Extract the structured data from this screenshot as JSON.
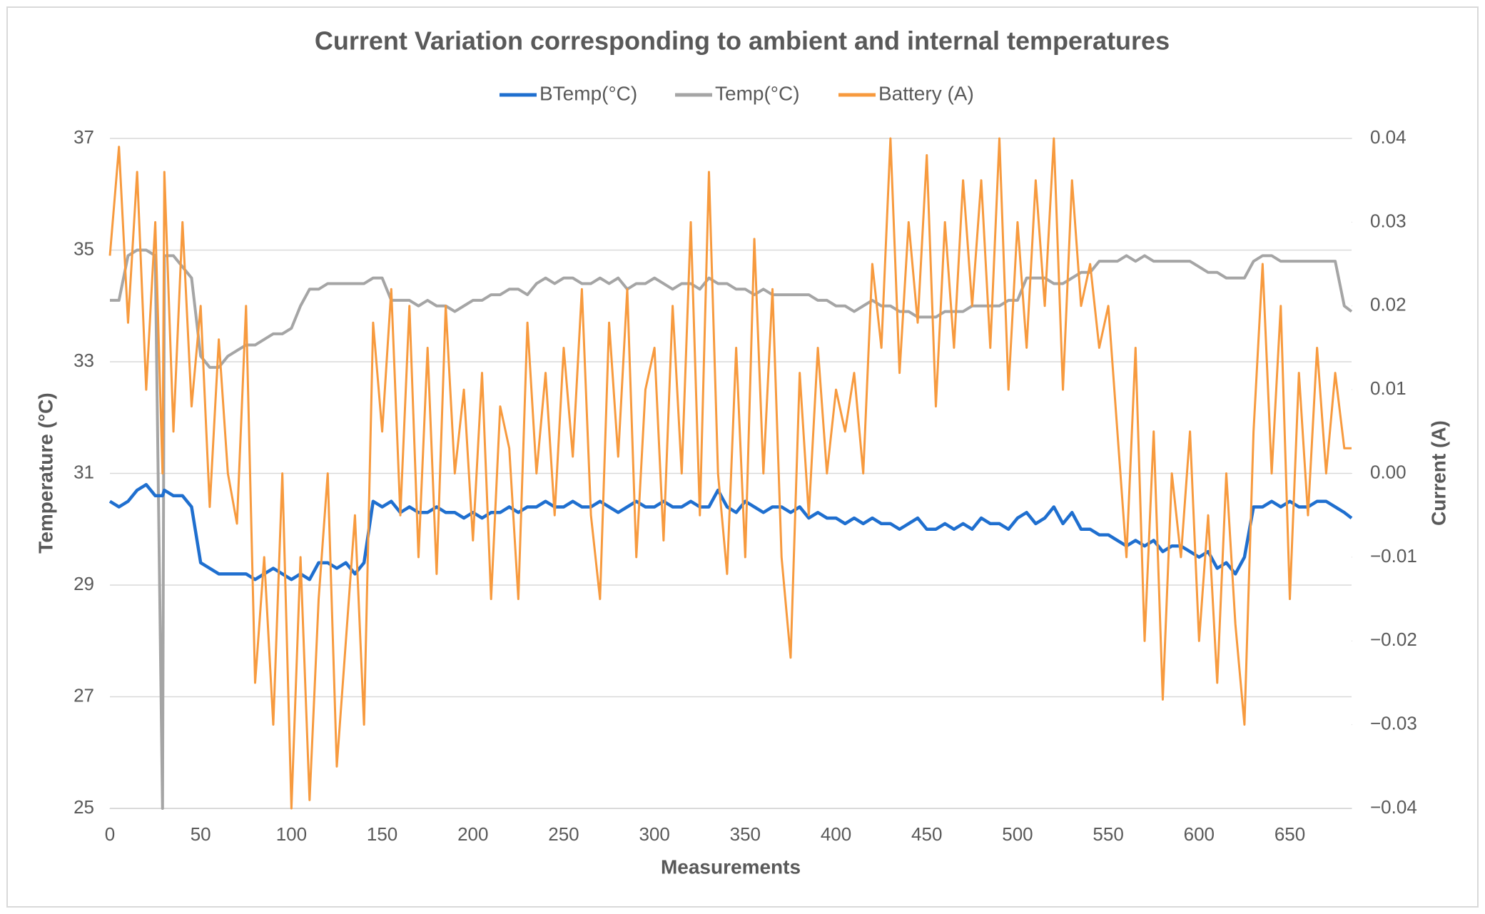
{
  "chart_data": {
    "type": "line",
    "title": "Current Variation corresponding to ambient and internal temperatures",
    "x_label": "Measurements",
    "y_label": "Temperature (°C)",
    "y2_label": "Current (A)",
    "legend": "top",
    "grid": true,
    "xlim": [
      0,
      684
    ],
    "xticks": [
      0,
      50,
      100,
      150,
      200,
      250,
      300,
      350,
      400,
      450,
      500,
      550,
      600,
      650
    ],
    "ylim": [
      25,
      37
    ],
    "yticks": [
      25,
      27,
      29,
      31,
      33,
      35,
      37
    ],
    "y2lim": [
      -0.04,
      0.04
    ],
    "y2ticks": [
      {
        "value": -0.04,
        "label": "−0.04"
      },
      {
        "value": -0.03,
        "label": "−0.03"
      },
      {
        "value": -0.02,
        "label": "−0.02"
      },
      {
        "value": -0.01,
        "label": "−0.01"
      },
      {
        "value": 0,
        "label": "0.00"
      },
      0.01,
      0.02,
      0.03,
      0.04
    ],
    "x": [
      0,
      5,
      10,
      15,
      20,
      25,
      29,
      30,
      35,
      40,
      45,
      50,
      55,
      60,
      65,
      70,
      75,
      80,
      85,
      90,
      95,
      100,
      105,
      110,
      115,
      120,
      125,
      130,
      135,
      140,
      145,
      150,
      155,
      160,
      165,
      170,
      175,
      180,
      185,
      190,
      195,
      200,
      205,
      210,
      215,
      220,
      225,
      230,
      235,
      240,
      245,
      250,
      255,
      260,
      265,
      270,
      275,
      280,
      285,
      290,
      295,
      300,
      305,
      310,
      315,
      320,
      325,
      330,
      335,
      340,
      345,
      350,
      355,
      360,
      365,
      370,
      375,
      380,
      385,
      390,
      395,
      400,
      405,
      410,
      415,
      420,
      425,
      430,
      435,
      440,
      445,
      450,
      455,
      460,
      465,
      470,
      475,
      480,
      485,
      490,
      495,
      500,
      505,
      510,
      515,
      520,
      525,
      530,
      535,
      540,
      545,
      550,
      555,
      560,
      565,
      570,
      575,
      580,
      585,
      590,
      595,
      600,
      605,
      610,
      615,
      620,
      625,
      630,
      635,
      640,
      645,
      650,
      655,
      660,
      665,
      670,
      675,
      680,
      684
    ],
    "series": [
      {
        "name": "BTemp(°C)",
        "color": "#1f6fcf",
        "values": [
          30.5,
          30.4,
          30.5,
          30.7,
          30.8,
          30.6,
          30.6,
          30.7,
          30.6,
          30.6,
          30.4,
          29.4,
          29.3,
          29.2,
          29.2,
          29.2,
          29.2,
          29.1,
          29.2,
          29.3,
          29.2,
          29.1,
          29.2,
          29.1,
          29.4,
          29.4,
          29.3,
          29.4,
          29.2,
          29.4,
          30.5,
          30.4,
          30.5,
          30.3,
          30.4,
          30.3,
          30.3,
          30.4,
          30.3,
          30.3,
          30.2,
          30.3,
          30.2,
          30.3,
          30.3,
          30.4,
          30.3,
          30.4,
          30.4,
          30.5,
          30.4,
          30.4,
          30.5,
          30.4,
          30.4,
          30.5,
          30.4,
          30.3,
          30.4,
          30.5,
          30.4,
          30.4,
          30.5,
          30.4,
          30.4,
          30.5,
          30.4,
          30.4,
          30.7,
          30.4,
          30.3,
          30.5,
          30.4,
          30.3,
          30.4,
          30.4,
          30.3,
          30.4,
          30.2,
          30.3,
          30.2,
          30.2,
          30.1,
          30.2,
          30.1,
          30.2,
          30.1,
          30.1,
          30.0,
          30.1,
          30.2,
          30.0,
          30.0,
          30.1,
          30.0,
          30.1,
          30.0,
          30.2,
          30.1,
          30.1,
          30.0,
          30.2,
          30.3,
          30.1,
          30.2,
          30.4,
          30.1,
          30.3,
          30.0,
          30.0,
          29.9,
          29.9,
          29.8,
          29.7,
          29.8,
          29.7,
          29.8,
          29.6,
          29.7,
          29.7,
          29.6,
          29.5,
          29.6,
          29.3,
          29.4,
          29.2,
          29.5,
          30.4,
          30.4,
          30.5,
          30.4,
          30.5,
          30.4,
          30.4,
          30.5,
          30.5,
          30.4,
          30.3,
          30.2
        ]
      },
      {
        "name": "Temp(°C)",
        "color": "#a5a5a5",
        "values": [
          34.1,
          34.1,
          34.9,
          35.0,
          35.0,
          34.9,
          25,
          34.9,
          34.9,
          34.7,
          34.5,
          33.1,
          32.9,
          32.9,
          33.1,
          33.2,
          33.3,
          33.3,
          33.4,
          33.5,
          33.5,
          33.6,
          34.0,
          34.3,
          34.3,
          34.4,
          34.4,
          34.4,
          34.4,
          34.4,
          34.5,
          34.5,
          34.1,
          34.1,
          34.1,
          34.0,
          34.1,
          34.0,
          34.0,
          33.9,
          34.0,
          34.1,
          34.1,
          34.2,
          34.2,
          34.3,
          34.3,
          34.2,
          34.4,
          34.5,
          34.4,
          34.5,
          34.5,
          34.4,
          34.4,
          34.5,
          34.4,
          34.5,
          34.3,
          34.4,
          34.4,
          34.5,
          34.4,
          34.3,
          34.4,
          34.4,
          34.3,
          34.5,
          34.4,
          34.4,
          34.3,
          34.3,
          34.2,
          34.3,
          34.2,
          34.2,
          34.2,
          34.2,
          34.2,
          34.1,
          34.1,
          34.0,
          34.0,
          33.9,
          34.0,
          34.1,
          34.0,
          34.0,
          33.9,
          33.9,
          33.8,
          33.8,
          33.8,
          33.9,
          33.9,
          33.9,
          34.0,
          34.0,
          34.0,
          34.0,
          34.1,
          34.1,
          34.5,
          34.5,
          34.5,
          34.4,
          34.4,
          34.5,
          34.6,
          34.6,
          34.8,
          34.8,
          34.8,
          34.9,
          34.8,
          34.9,
          34.8,
          34.8,
          34.8,
          34.8,
          34.8,
          34.7,
          34.6,
          34.6,
          34.5,
          34.5,
          34.5,
          34.8,
          34.9,
          34.9,
          34.8,
          34.8,
          34.8,
          34.8,
          34.8,
          34.8,
          34.8,
          34.0,
          33.9
        ]
      },
      {
        "name": "Battery (A)",
        "color": "#f79a3e",
        "axis": "y2",
        "values": [
          0.026,
          0.039,
          0.018,
          0.036,
          0.01,
          0.03,
          0.0,
          0.036,
          0.005,
          0.03,
          0.008,
          0.02,
          -0.004,
          0.016,
          0.0,
          -0.006,
          0.02,
          -0.025,
          -0.01,
          -0.03,
          0.0,
          -0.04,
          -0.01,
          -0.039,
          -0.015,
          0.0,
          -0.035,
          -0.02,
          -0.005,
          -0.03,
          0.018,
          0.005,
          0.022,
          -0.005,
          0.02,
          -0.01,
          0.015,
          -0.012,
          0.02,
          0.0,
          0.01,
          -0.008,
          0.012,
          -0.015,
          0.008,
          0.003,
          -0.015,
          0.018,
          0.0,
          0.012,
          -0.005,
          0.015,
          0.002,
          0.022,
          -0.005,
          -0.015,
          0.018,
          0.002,
          0.022,
          -0.01,
          0.01,
          0.015,
          -0.008,
          0.02,
          0.0,
          0.03,
          -0.005,
          0.036,
          0.0,
          -0.012,
          0.015,
          -0.01,
          0.028,
          0.0,
          0.022,
          -0.01,
          -0.022,
          0.012,
          -0.005,
          0.015,
          0.0,
          0.01,
          0.005,
          0.012,
          0.0,
          0.025,
          0.015,
          0.04,
          0.012,
          0.03,
          0.018,
          0.038,
          0.008,
          0.03,
          0.015,
          0.035,
          0.02,
          0.035,
          0.015,
          0.04,
          0.01,
          0.03,
          0.015,
          0.035,
          0.02,
          0.04,
          0.01,
          0.035,
          0.02,
          0.025,
          0.015,
          0.02,
          0.005,
          -0.01,
          0.015,
          -0.02,
          0.005,
          -0.027,
          0.0,
          -0.01,
          0.005,
          -0.02,
          -0.005,
          -0.025,
          0.0,
          -0.018,
          -0.03,
          0.005,
          0.025,
          0.0,
          0.02,
          -0.015,
          0.012,
          -0.005,
          0.015,
          0.0,
          0.012,
          0.003,
          0.003
        ]
      }
    ]
  }
}
